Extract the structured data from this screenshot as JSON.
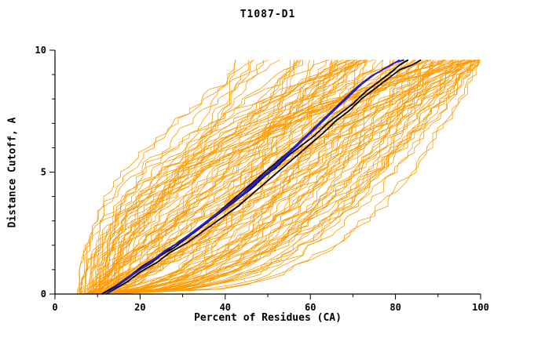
{
  "title": "T1087-D1",
  "chart_data": {
    "type": "line",
    "title": "T1087-D1",
    "xlabel": "Percent of Residues (CA)",
    "ylabel": "Distance Cutoff, A",
    "xlim": [
      0,
      100
    ],
    "ylim": [
      0,
      10
    ],
    "x_major_ticks": [
      0,
      20,
      40,
      60,
      80,
      100
    ],
    "x_minor_step": 10,
    "y_major_ticks": [
      0,
      5,
      10
    ],
    "y_minor_step": 1,
    "grid": false,
    "legend": "none",
    "background": "#FFFFFF",
    "axis_color": "#000000",
    "ensemble": {
      "description": "sheaf of ~120 predicted-model GDT curves (percent of CA residues under each distance cutoff)",
      "count": 120,
      "color": "#FF9A00",
      "seed": 7,
      "x_start_range": [
        5,
        14
      ],
      "x_end_range": [
        42,
        100
      ],
      "shape_exponent_range": [
        0.3,
        2.5
      ],
      "y_max": 9.6
    },
    "series": [
      {
        "name": "highlighted-model-black-1",
        "color": "#000000",
        "points": [
          [
            11,
            0
          ],
          [
            13,
            0.2
          ],
          [
            16,
            0.5
          ],
          [
            19,
            0.9
          ],
          [
            22,
            1.2
          ],
          [
            25,
            1.6
          ],
          [
            28,
            1.9
          ],
          [
            31,
            2.3
          ],
          [
            34,
            2.7
          ],
          [
            37,
            3.1
          ],
          [
            40,
            3.5
          ],
          [
            43,
            3.9
          ],
          [
            46,
            4.3
          ],
          [
            49,
            4.8
          ],
          [
            52,
            5.2
          ],
          [
            55,
            5.7
          ],
          [
            58,
            6.1
          ],
          [
            61,
            6.5
          ],
          [
            64,
            7.0
          ],
          [
            67,
            7.4
          ],
          [
            70,
            7.8
          ],
          [
            73,
            8.3
          ],
          [
            76,
            8.7
          ],
          [
            79,
            9.1
          ],
          [
            81,
            9.4
          ],
          [
            83,
            9.6
          ]
        ]
      },
      {
        "name": "highlighted-model-black-2",
        "color": "#000000",
        "points": [
          [
            12,
            0
          ],
          [
            14,
            0.2
          ],
          [
            17,
            0.5
          ],
          [
            20,
            0.9
          ],
          [
            24,
            1.3
          ],
          [
            27,
            1.7
          ],
          [
            31,
            2.1
          ],
          [
            35,
            2.6
          ],
          [
            39,
            3.1
          ],
          [
            43,
            3.6
          ],
          [
            47,
            4.2
          ],
          [
            51,
            4.8
          ],
          [
            55,
            5.4
          ],
          [
            59,
            6.0
          ],
          [
            63,
            6.6
          ],
          [
            66,
            7.1
          ],
          [
            69,
            7.5
          ],
          [
            72,
            8.0
          ],
          [
            75,
            8.4
          ],
          [
            78,
            8.8
          ],
          [
            81,
            9.2
          ],
          [
            84,
            9.4
          ],
          [
            86,
            9.6
          ]
        ]
      },
      {
        "name": "highlighted-model-black-3",
        "color": "#000000",
        "points": [
          [
            11,
            0
          ],
          [
            14,
            0.3
          ],
          [
            18,
            0.8
          ],
          [
            21,
            1.2
          ],
          [
            24,
            1.5
          ],
          [
            28,
            2.0
          ],
          [
            32,
            2.5
          ],
          [
            36,
            3.0
          ],
          [
            40,
            3.6
          ],
          [
            44,
            4.2
          ],
          [
            48,
            4.8
          ],
          [
            52,
            5.4
          ],
          [
            56,
            6.0
          ],
          [
            60,
            6.6
          ],
          [
            63,
            7.1
          ],
          [
            66,
            7.6
          ],
          [
            69,
            8.1
          ],
          [
            72,
            8.6
          ],
          [
            75,
            9.0
          ],
          [
            78,
            9.3
          ],
          [
            80,
            9.5
          ],
          [
            82,
            9.6
          ]
        ]
      },
      {
        "name": "highlighted-model-blue-1",
        "color": "#2222CC",
        "points": [
          [
            12,
            0
          ],
          [
            15,
            0.4
          ],
          [
            18,
            0.8
          ],
          [
            21,
            1.1
          ],
          [
            24,
            1.5
          ],
          [
            27,
            1.9
          ],
          [
            30,
            2.2
          ],
          [
            33,
            2.6
          ],
          [
            36,
            3.0
          ],
          [
            39,
            3.4
          ],
          [
            42,
            3.8
          ],
          [
            45,
            4.2
          ],
          [
            48,
            4.7
          ],
          [
            51,
            5.1
          ],
          [
            54,
            5.6
          ],
          [
            57,
            6.1
          ],
          [
            60,
            6.6
          ],
          [
            63,
            7.1
          ],
          [
            66,
            7.6
          ],
          [
            69,
            8.1
          ],
          [
            72,
            8.6
          ],
          [
            75,
            9.0
          ],
          [
            78,
            9.3
          ],
          [
            80,
            9.5
          ],
          [
            82,
            9.6
          ]
        ]
      },
      {
        "name": "highlighted-model-blue-2",
        "color": "#2222CC",
        "points": [
          [
            12,
            0
          ],
          [
            16,
            0.5
          ],
          [
            20,
            1.0
          ],
          [
            23,
            1.4
          ],
          [
            26,
            1.8
          ],
          [
            29,
            2.1
          ],
          [
            32,
            2.5
          ],
          [
            35,
            2.9
          ],
          [
            38,
            3.3
          ],
          [
            41,
            3.7
          ],
          [
            44,
            4.1
          ],
          [
            47,
            4.6
          ],
          [
            50,
            5.0
          ],
          [
            53,
            5.5
          ],
          [
            56,
            6.0
          ],
          [
            59,
            6.5
          ],
          [
            62,
            7.0
          ],
          [
            65,
            7.5
          ],
          [
            68,
            8.0
          ],
          [
            71,
            8.5
          ],
          [
            74,
            8.9
          ],
          [
            77,
            9.2
          ],
          [
            79,
            9.4
          ],
          [
            81,
            9.6
          ]
        ]
      }
    ]
  }
}
